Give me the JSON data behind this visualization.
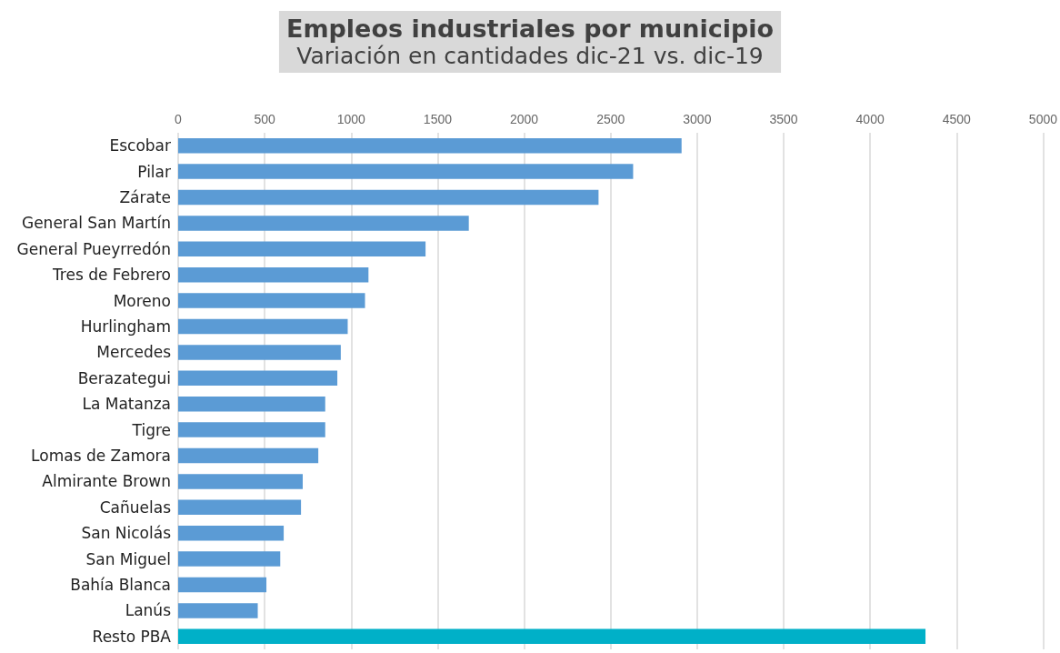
{
  "chart_data": {
    "type": "bar",
    "orientation": "horizontal",
    "title": "Empleos industriales por municipio",
    "subtitle": "Variación en cantidades dic-21 vs. dic-19",
    "categories": [
      "Escobar",
      "Pilar",
      "Zárate",
      "General San Martín",
      "General Pueyrredón",
      "Tres de Febrero",
      "Moreno",
      "Hurlingham",
      "Mercedes",
      "Berazategui",
      "La Matanza",
      "Tigre",
      "Lomas de Zamora",
      "Almirante Brown",
      "Cañuelas",
      "San Nicolás",
      "San Miguel",
      "Bahía Blanca",
      "Lanús",
      "Resto PBA"
    ],
    "values": [
      2910,
      2630,
      2430,
      1680,
      1430,
      1100,
      1080,
      980,
      940,
      920,
      850,
      850,
      810,
      720,
      710,
      610,
      590,
      510,
      460,
      4320
    ],
    "colors": [
      "#5b9bd5",
      "#5b9bd5",
      "#5b9bd5",
      "#5b9bd5",
      "#5b9bd5",
      "#5b9bd5",
      "#5b9bd5",
      "#5b9bd5",
      "#5b9bd5",
      "#5b9bd5",
      "#5b9bd5",
      "#5b9bd5",
      "#5b9bd5",
      "#5b9bd5",
      "#5b9bd5",
      "#5b9bd5",
      "#5b9bd5",
      "#5b9bd5",
      "#5b9bd5",
      "#00b0c8"
    ],
    "xlim": [
      0,
      5000
    ],
    "xticks": [
      0,
      500,
      1000,
      1500,
      2000,
      2500,
      3000,
      3500,
      4000,
      4500,
      5000
    ],
    "grid": "x"
  }
}
